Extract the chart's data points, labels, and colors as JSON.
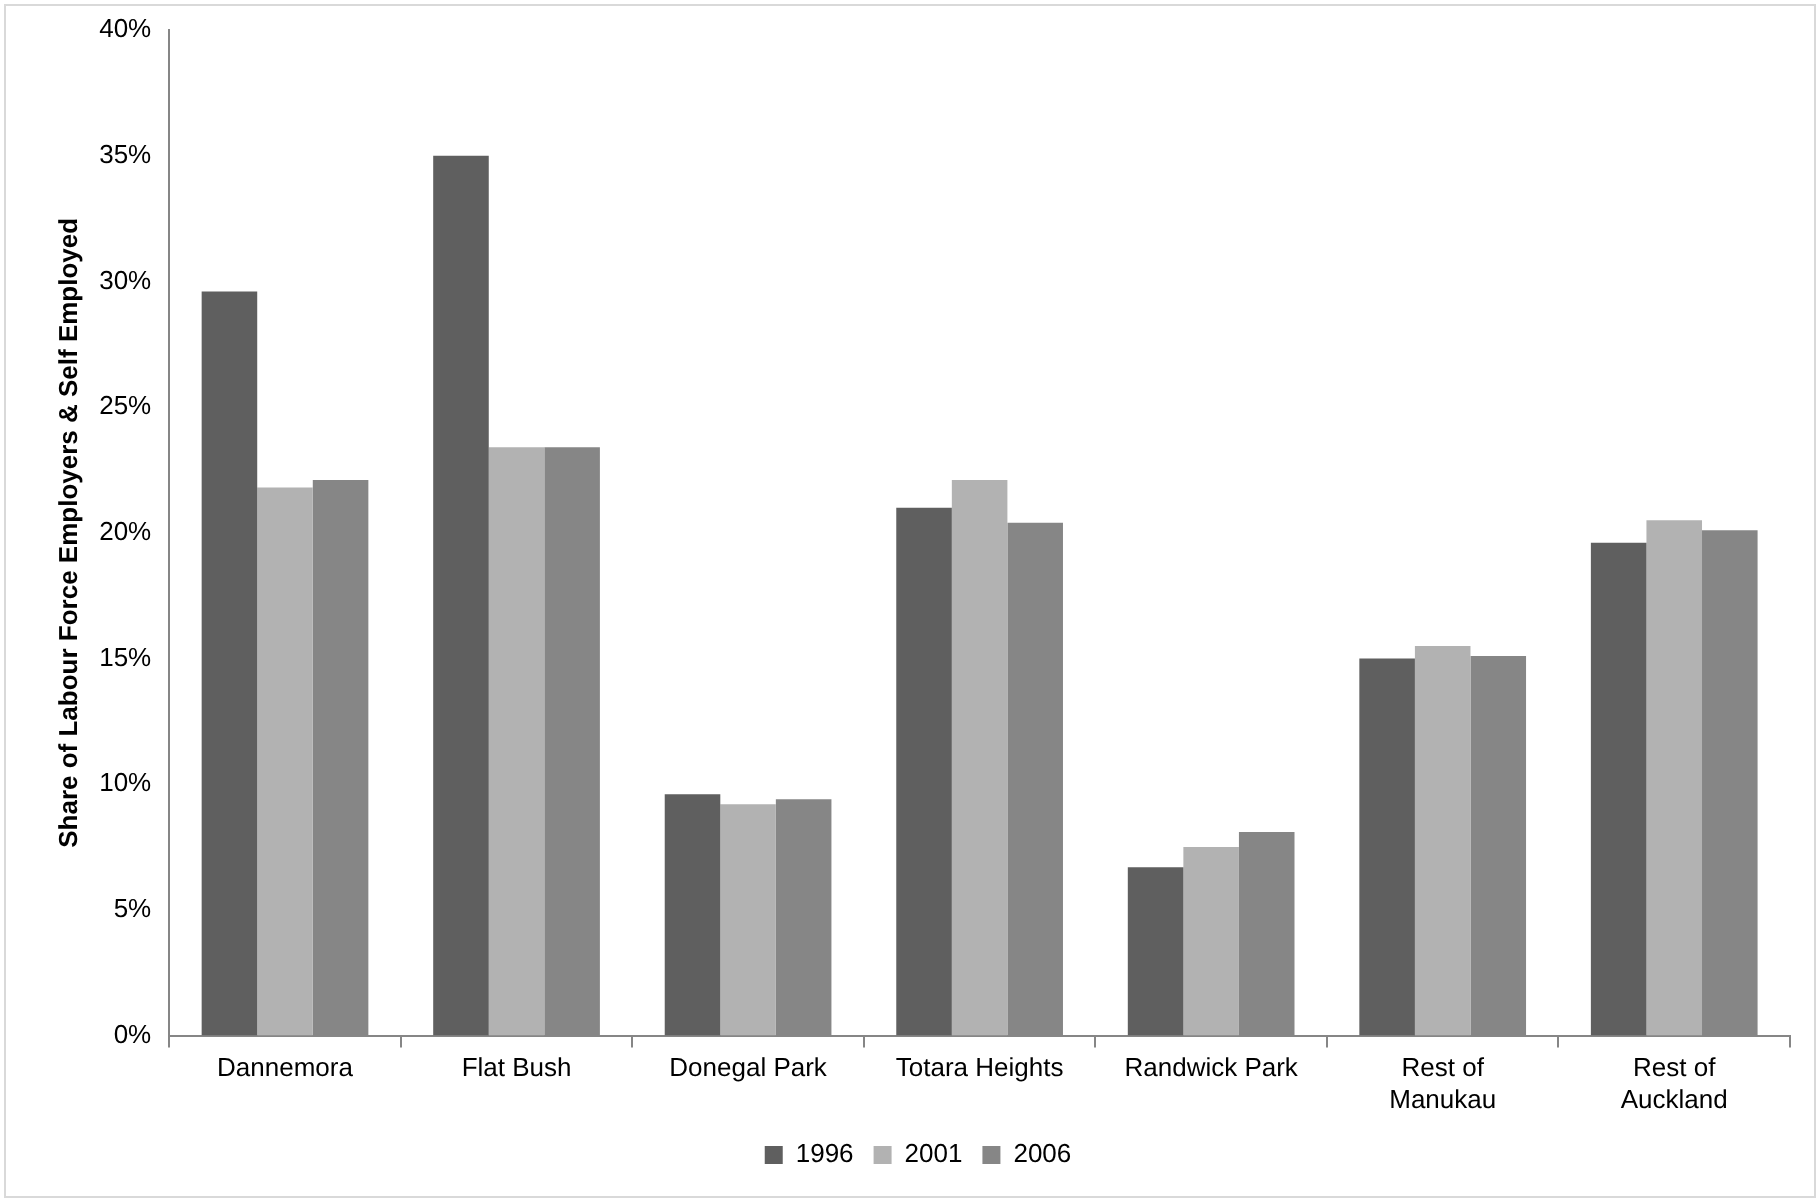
{
  "chart_data": {
    "type": "bar",
    "ylabel": "Share of Labour Force Employers & Self Employed",
    "categories": [
      "Dannemora",
      "Flat Bush",
      "Donegal Park",
      "Totara Heights",
      "Randwick Park",
      "Rest of Manukau",
      "Rest of Auckland"
    ],
    "series": [
      {
        "name": "1996",
        "color": "#5f5f5f",
        "values": [
          29.6,
          35.0,
          9.6,
          21.0,
          6.7,
          15.0,
          19.6
        ]
      },
      {
        "name": "2001",
        "color": "#b2b2b2",
        "values": [
          21.8,
          23.4,
          9.2,
          22.1,
          7.5,
          15.5,
          20.5
        ]
      },
      {
        "name": "2006",
        "color": "#868686",
        "values": [
          22.1,
          23.4,
          9.4,
          20.4,
          8.1,
          15.1,
          20.1
        ]
      }
    ],
    "ylim": [
      0,
      40
    ],
    "yticks": [
      {
        "value": 0,
        "label": "0%"
      },
      {
        "value": 5,
        "label": "5%"
      },
      {
        "value": 10,
        "label": "10%"
      },
      {
        "value": 15,
        "label": "15%"
      },
      {
        "value": 20,
        "label": "20%"
      },
      {
        "value": 25,
        "label": "25%"
      },
      {
        "value": 30,
        "label": "30%"
      },
      {
        "value": 35,
        "label": "35%"
      },
      {
        "value": 40,
        "label": "40%"
      }
    ],
    "grid": false,
    "legend": "bottom"
  }
}
